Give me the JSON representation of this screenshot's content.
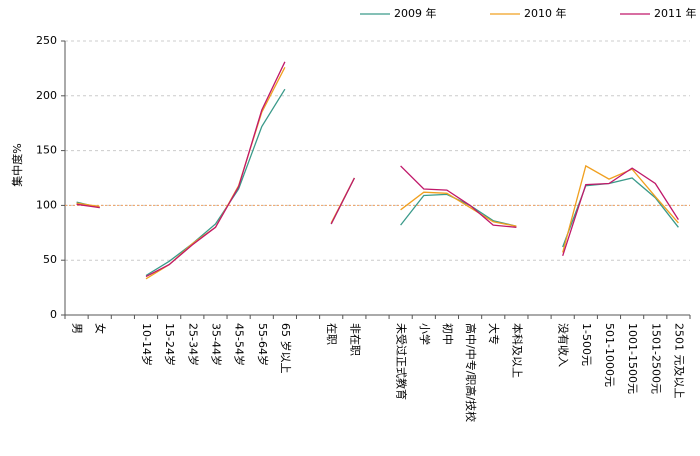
{
  "chart_data": {
    "type": "line",
    "y_label": "集中度%",
    "categories": [
      "男",
      "女",
      null,
      "10-14岁",
      "15-24岁",
      "25-34岁",
      "35-44岁",
      "45-54岁",
      "55-64岁",
      "65 岁以上",
      null,
      "在职",
      "非在职",
      null,
      "未受过正式教育",
      "小学",
      "初中",
      "高中/中专/职高/技校",
      "大专",
      "本科及以上",
      null,
      "没有收入",
      "1-500元",
      "501-1000元",
      "1001-1500元",
      "1501-2500元",
      "2501 元及以上"
    ],
    "series": [
      {
        "name": "2009 年",
        "color": "#3a9a8a",
        "values": [
          103,
          98,
          null,
          36,
          49,
          65,
          83,
          115,
          172,
          206,
          null,
          83,
          125,
          null,
          82,
          109,
          110,
          100,
          86,
          81,
          null,
          62,
          118,
          120,
          125,
          107,
          80
        ]
      },
      {
        "name": "2010 年",
        "color": "#f0a020",
        "values": [
          102,
          99,
          null,
          33,
          46,
          65,
          80,
          118,
          185,
          226,
          null,
          84,
          125,
          null,
          96,
          112,
          111,
          98,
          85,
          81,
          null,
          57,
          136,
          124,
          133,
          108,
          84
        ]
      },
      {
        "name": "2011 年",
        "color": "#c0186a",
        "values": [
          101,
          98,
          null,
          35,
          46,
          64,
          80,
          117,
          187,
          231,
          null,
          83,
          125,
          null,
          136,
          115,
          114,
          100,
          82,
          80,
          null,
          54,
          119,
          120,
          134,
          120,
          87
        ]
      }
    ],
    "reference_line": 100,
    "reference_color": "#f0a060",
    "ylim": [
      0,
      250
    ],
    "yticks": [
      0,
      50,
      100,
      150,
      200,
      250
    ],
    "grid": true,
    "legend": "top"
  }
}
